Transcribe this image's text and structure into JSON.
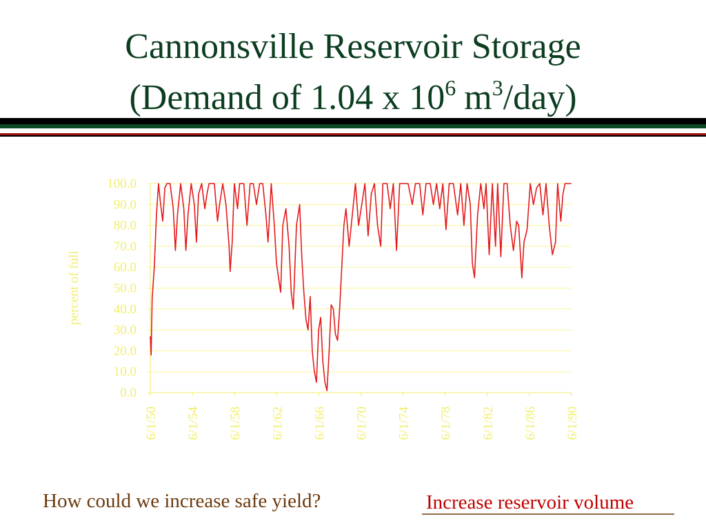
{
  "chart_data": {
    "type": "line",
    "title": [
      "Cannonsville Reservoir Storage",
      "(Demand of 1.04 x 10",
      "6",
      "m",
      "3",
      "/day)"
    ],
    "ylabel": "percent of full",
    "color": "#e3191c",
    "grid": true,
    "xlim": [
      1950.42,
      1990.42
    ],
    "ylim": [
      0,
      100
    ],
    "xticks": [
      {
        "value": 1950.42,
        "label": "6/1/50"
      },
      {
        "value": 1954.42,
        "label": "6/1/54"
      },
      {
        "value": 1958.42,
        "label": "6/1/58"
      },
      {
        "value": 1962.42,
        "label": "6/1/62"
      },
      {
        "value": 1966.42,
        "label": "6/1/66"
      },
      {
        "value": 1970.42,
        "label": "6/1/70"
      },
      {
        "value": 1974.42,
        "label": "6/1/74"
      },
      {
        "value": 1978.42,
        "label": "6/1/78"
      },
      {
        "value": 1982.42,
        "label": "6/1/82"
      },
      {
        "value": 1986.42,
        "label": "6/1/86"
      },
      {
        "value": 1990.42,
        "label": "6/1/90"
      }
    ],
    "yticks": [
      {
        "value": 0,
        "label": "0.0"
      },
      {
        "value": 10,
        "label": "10.0"
      },
      {
        "value": 20,
        "label": "20.0"
      },
      {
        "value": 30,
        "label": "30.0"
      },
      {
        "value": 40,
        "label": "40.0"
      },
      {
        "value": 50,
        "label": "50.0"
      },
      {
        "value": 60,
        "label": "60.0"
      },
      {
        "value": 70,
        "label": "70.0"
      },
      {
        "value": 80,
        "label": "80.0"
      },
      {
        "value": 90,
        "label": "90.0"
      },
      {
        "value": 100,
        "label": "100.0"
      }
    ],
    "x": [
      1950.42,
      1950.5,
      1950.6,
      1950.8,
      1951.0,
      1951.2,
      1951.4,
      1951.6,
      1951.8,
      1952.0,
      1952.3,
      1952.6,
      1952.8,
      1953.0,
      1953.3,
      1953.6,
      1953.8,
      1954.0,
      1954.3,
      1954.6,
      1954.8,
      1955.0,
      1955.3,
      1955.6,
      1955.8,
      1956.0,
      1956.5,
      1956.8,
      1957.0,
      1957.3,
      1957.6,
      1957.9,
      1958.0,
      1958.2,
      1958.4,
      1958.7,
      1958.9,
      1959.3,
      1959.6,
      1959.9,
      1960.2,
      1960.5,
      1960.8,
      1961.1,
      1961.4,
      1961.6,
      1961.9,
      1962.2,
      1962.4,
      1962.6,
      1962.8,
      1963.0,
      1963.3,
      1963.6,
      1963.8,
      1964.0,
      1964.3,
      1964.6,
      1964.8,
      1965.0,
      1965.2,
      1965.4,
      1965.6,
      1965.8,
      1966.0,
      1966.2,
      1966.4,
      1966.6,
      1966.8,
      1967.0,
      1967.2,
      1967.4,
      1967.6,
      1967.8,
      1968.0,
      1968.2,
      1968.4,
      1968.6,
      1968.8,
      1969.0,
      1969.3,
      1969.6,
      1969.9,
      1970.2,
      1970.5,
      1970.8,
      1971.1,
      1971.4,
      1971.7,
      1972.0,
      1972.3,
      1972.5,
      1972.9,
      1973.2,
      1973.5,
      1973.8,
      1974.1,
      1974.5,
      1974.9,
      1975.3,
      1975.6,
      1976.0,
      1976.3,
      1976.6,
      1977.0,
      1977.3,
      1977.6,
      1977.9,
      1978.2,
      1978.5,
      1978.8,
      1979.2,
      1979.6,
      1979.9,
      1980.2,
      1980.5,
      1980.8,
      1981.0,
      1981.2,
      1981.5,
      1981.8,
      1982.1,
      1982.3,
      1982.6,
      1982.9,
      1983.2,
      1983.4,
      1983.7,
      1984.0,
      1984.3,
      1984.6,
      1984.9,
      1985.2,
      1985.4,
      1985.7,
      1985.9,
      1986.2,
      1986.5,
      1986.8,
      1987.1,
      1987.4,
      1987.7,
      1988.0,
      1988.3,
      1988.6,
      1988.9,
      1989.1,
      1989.4,
      1989.6,
      1989.8,
      1990.4
    ],
    "values": [
      27,
      18,
      45,
      60,
      85,
      100,
      90,
      82,
      98,
      100,
      100,
      88,
      68,
      85,
      100,
      88,
      68,
      85,
      100,
      90,
      72,
      95,
      100,
      88,
      95,
      100,
      100,
      82,
      90,
      100,
      90,
      70,
      58,
      72,
      100,
      88,
      100,
      100,
      80,
      100,
      100,
      90,
      100,
      100,
      85,
      72,
      100,
      80,
      62,
      55,
      48,
      80,
      88,
      70,
      48,
      40,
      80,
      90,
      65,
      48,
      35,
      30,
      46,
      20,
      10,
      5,
      30,
      36,
      15,
      5,
      1,
      20,
      42,
      40,
      28,
      25,
      40,
      60,
      80,
      88,
      70,
      85,
      100,
      80,
      90,
      100,
      75,
      95,
      100,
      80,
      70,
      100,
      100,
      88,
      100,
      68,
      100,
      100,
      100,
      90,
      100,
      100,
      85,
      100,
      100,
      90,
      100,
      88,
      100,
      78,
      100,
      100,
      85,
      100,
      80,
      100,
      90,
      62,
      55,
      85,
      100,
      88,
      100,
      66,
      100,
      70,
      100,
      65,
      100,
      100,
      80,
      68,
      82,
      80,
      55,
      72,
      78,
      100,
      90,
      98,
      100,
      85,
      100,
      80,
      66,
      72,
      100,
      82,
      95,
      100,
      100
    ]
  },
  "annotations": {
    "question": "How could we increase safe yield?",
    "answer": "Increase reservoir volume"
  }
}
